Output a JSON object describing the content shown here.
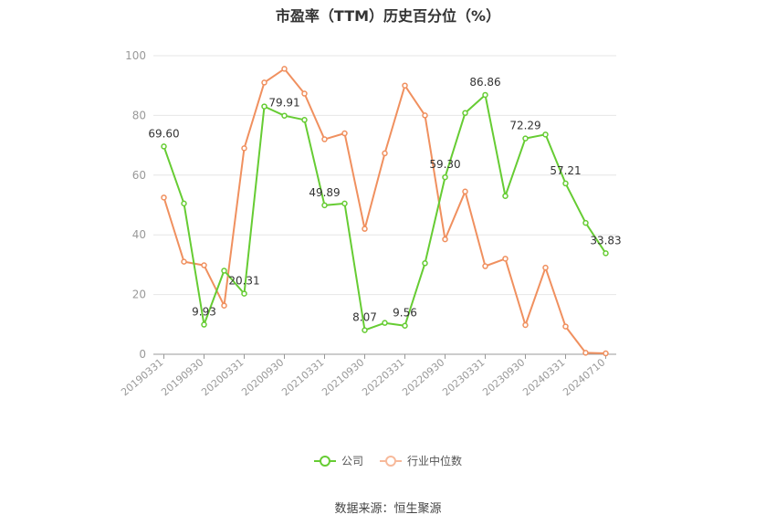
{
  "chart_data": {
    "type": "line",
    "title": "市盈率（TTM）历史百分位（%）",
    "xlabel": "",
    "ylabel": "",
    "ylim": [
      0,
      100
    ],
    "yticks": [
      0,
      20,
      40,
      60,
      80,
      100
    ],
    "x_tick_labels": [
      "20190331",
      "20190930",
      "20200331",
      "20200930",
      "20210331",
      "20210930",
      "20220331",
      "20220930",
      "20230331",
      "20230930",
      "20240331",
      "20240710"
    ],
    "grid": true,
    "legend": "bottom",
    "series": [
      {
        "name": "公司",
        "color": "#66cc33",
        "values": [
          69.6,
          50.5,
          9.93,
          28.0,
          20.31,
          83.0,
          79.91,
          78.5,
          49.89,
          50.5,
          8.07,
          10.5,
          9.56,
          30.5,
          59.3,
          80.8,
          86.86,
          53.0,
          72.29,
          73.6,
          57.21,
          44.0,
          33.83
        ],
        "labels": {
          "0": "69.60",
          "2": "9.93",
          "4": "20.31",
          "6": "79.91",
          "8": "49.89",
          "10": "8.07",
          "12": "9.56",
          "14": "59.30",
          "16": "86.86",
          "18": "72.29",
          "20": "57.21",
          "22": "33.83"
        }
      },
      {
        "name": "行业中位数",
        "color": "#f0905f",
        "values": [
          52.5,
          31.0,
          29.8,
          16.3,
          69.0,
          91.0,
          95.6,
          87.3,
          72.0,
          74.0,
          42.0,
          67.3,
          90.0,
          80.0,
          38.5,
          54.5,
          29.5,
          32.0,
          9.8,
          29.0,
          9.3,
          0.5,
          0.3
        ]
      }
    ]
  },
  "legend": {
    "company": "公司",
    "industry": "行业中位数",
    "company_color": "#66cc33",
    "industry_color": "#f0905f"
  },
  "source": "数据来源：恒生聚源"
}
